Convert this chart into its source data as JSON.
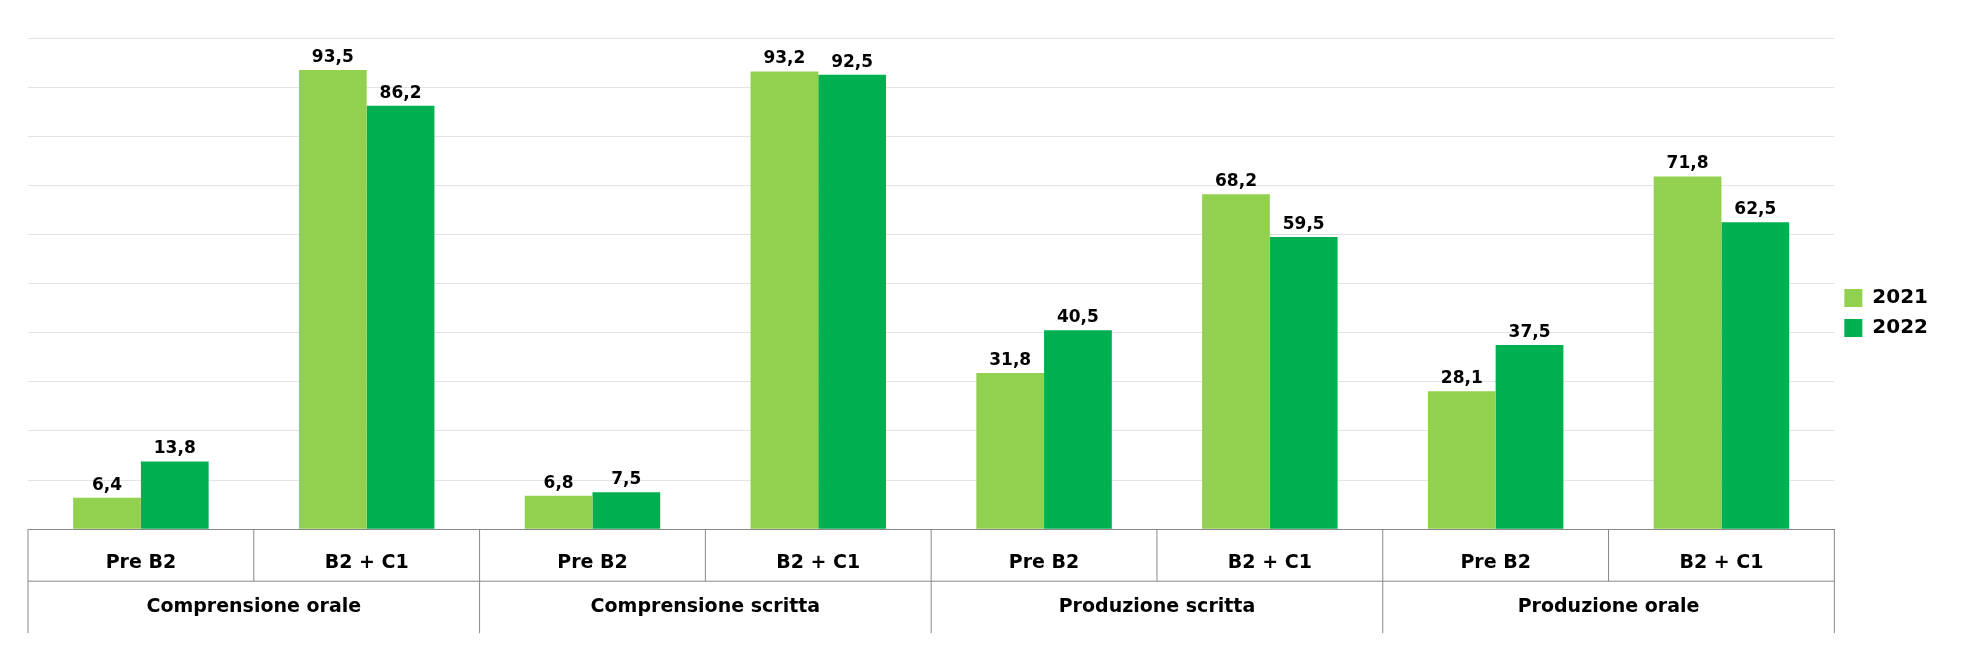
{
  "chart_data": {
    "type": "bar",
    "categories": [
      "Pre B2",
      "B2 + C1",
      "Pre B2",
      "B2 + C1",
      "Pre B2",
      "B2 + C1",
      "Pre B2",
      "B2 + C1"
    ],
    "series": [
      {
        "name": "2021",
        "color": "#92d050",
        "values": [
          6.4,
          93.5,
          6.8,
          93.2,
          31.8,
          68.2,
          28.1,
          71.8
        ],
        "value_labels": [
          "6,4",
          "93,5",
          "6,8",
          "93,2",
          "31,8",
          "68,2",
          "28,1",
          "71,8"
        ]
      },
      {
        "name": "2022",
        "color": "#00b050",
        "values": [
          13.8,
          86.2,
          7.5,
          92.5,
          40.5,
          59.5,
          37.5,
          62.5
        ],
        "value_labels": [
          "13,8",
          "86,2",
          "7,5",
          "92,5",
          "40,5",
          "59,5",
          "37,5",
          "62,5"
        ]
      }
    ],
    "annotations": [
      "Comprensione orale",
      "Comprensione scritta",
      "Produzione scritta",
      "Produzione orale"
    ],
    "tick_labels": "x",
    "grid": "y",
    "legend": "right"
  }
}
